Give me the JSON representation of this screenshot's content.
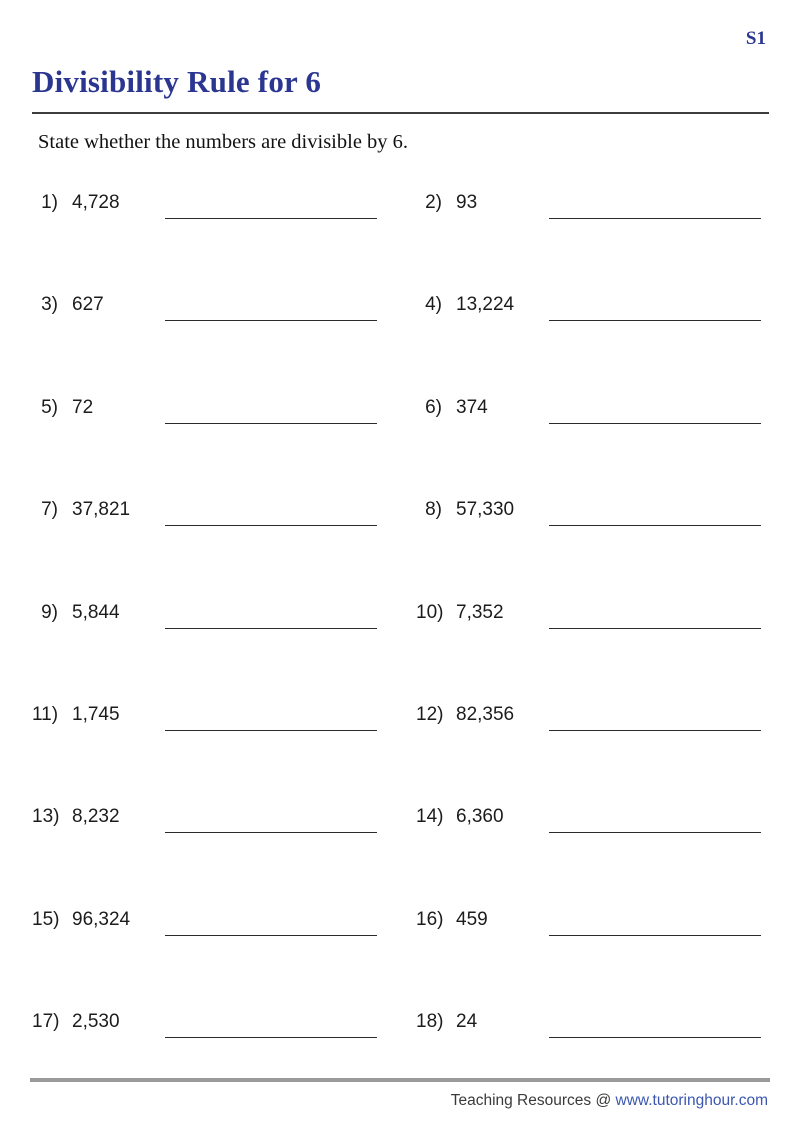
{
  "page": {
    "version_label": "S1",
    "title": "Divisibility Rule for 6",
    "instruction": "State whether the numbers are divisible by 6."
  },
  "problems": [
    {
      "num": "1)",
      "value": "4,728"
    },
    {
      "num": "2)",
      "value": "93"
    },
    {
      "num": "3)",
      "value": "627"
    },
    {
      "num": "4)",
      "value": "13,224"
    },
    {
      "num": "5)",
      "value": "72"
    },
    {
      "num": "6)",
      "value": "374"
    },
    {
      "num": "7)",
      "value": "37,821"
    },
    {
      "num": "8)",
      "value": "57,330"
    },
    {
      "num": "9)",
      "value": "5,844"
    },
    {
      "num": "10)",
      "value": "7,352"
    },
    {
      "num": "11)",
      "value": "1,745"
    },
    {
      "num": "12)",
      "value": "82,356"
    },
    {
      "num": "13)",
      "value": "8,232"
    },
    {
      "num": "14)",
      "value": "6,360"
    },
    {
      "num": "15)",
      "value": "96,324"
    },
    {
      "num": "16)",
      "value": "459"
    },
    {
      "num": "17)",
      "value": "2,530"
    },
    {
      "num": "18)",
      "value": "24"
    }
  ],
  "footer": {
    "credit_text": "Teaching Resources @ ",
    "site_link": "www.tutoringhour.com"
  },
  "colors": {
    "title_blue": "#2b3691",
    "link_blue": "#3b57b0",
    "text_black": "#1c1c1c",
    "rule_dark": "#3d3d3d",
    "rule_gray": "#9a9a9a"
  }
}
